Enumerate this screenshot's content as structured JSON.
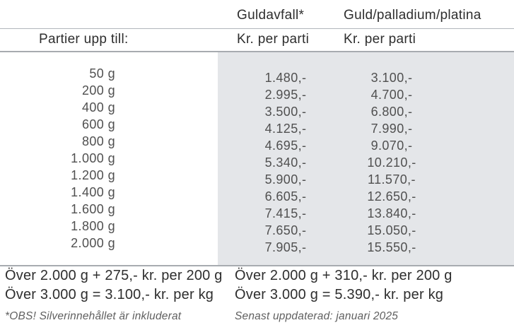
{
  "table": {
    "col_headers": {
      "guldavfall": "Guldavfall*",
      "guld_palladium_platina": "Guld/palladium/platina"
    },
    "row_header": "Partier upp till:",
    "unit_labels": {
      "guldavfall": "Kr. per parti",
      "guld_palladium_platina": "Kr. per parti"
    },
    "rows": [
      {
        "limit": "50 g",
        "guldavfall": "1.480,-",
        "guld_palladium_platina": "3.100,-"
      },
      {
        "limit": "200 g",
        "guldavfall": "2.995,-",
        "guld_palladium_platina": "4.700,-"
      },
      {
        "limit": "400 g",
        "guldavfall": "3.500,-",
        "guld_palladium_platina": "6.800,-"
      },
      {
        "limit": "600 g",
        "guldavfall": "4.125,-",
        "guld_palladium_platina": "7.990,-"
      },
      {
        "limit": "800 g",
        "guldavfall": "4.695,-",
        "guld_palladium_platina": "9.070,-"
      },
      {
        "limit": "1.000 g",
        "guldavfall": "5.340,-",
        "guld_palladium_platina": "10.210,-"
      },
      {
        "limit": "1.200 g",
        "guldavfall": "5.900,-",
        "guld_palladium_platina": "11.570,-"
      },
      {
        "limit": "1.400 g",
        "guldavfall": "6.605,-",
        "guld_palladium_platina": "12.650,-"
      },
      {
        "limit": "1.600 g",
        "guldavfall": "7.415,-",
        "guld_palladium_platina": "13.840,-"
      },
      {
        "limit": "1.800 g",
        "guldavfall": "7.650,-",
        "guld_palladium_platina": "15.050,-"
      },
      {
        "limit": "2.000 g",
        "guldavfall": "7.905,-",
        "guld_palladium_platina": "15.550,-"
      }
    ]
  },
  "footer": {
    "guldavfall": {
      "over_2000": "Över 2.000 g + 275,- kr. per 200 g",
      "over_3000": "Över 3.000 g = 3.100,- kr. per kg",
      "note": "*OBS! Silverinnehållet är inkluderat"
    },
    "guld_palladium_platina": {
      "over_2000": "Över 2.000 g + 310,- kr. per 200 g",
      "over_3000": "Över 3.000 g = 5.390,- kr. per kg",
      "note": "Senast uppdaterad: januari 2025"
    }
  },
  "colors": {
    "panel": "#e4e6e9",
    "line": "#a7abb0",
    "line_light": "#b2b6bb",
    "text_dark": "#2e2e2e",
    "text_value": "#505050",
    "text_note": "#606060"
  }
}
